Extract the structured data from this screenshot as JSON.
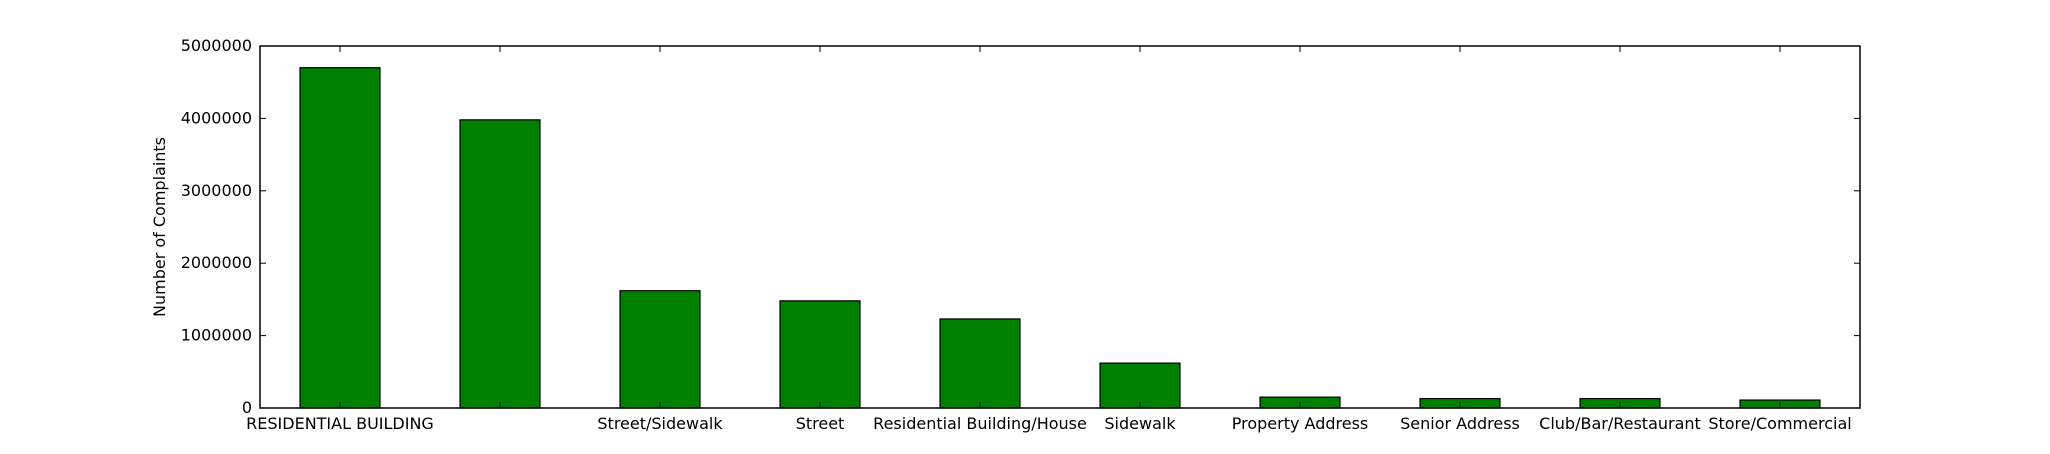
{
  "chart_data": {
    "type": "bar",
    "title": "",
    "xlabel": "",
    "ylabel": "Number of Complaints",
    "categories": [
      "RESIDENTIAL BUILDING",
      "",
      "Street/Sidewalk",
      "Street",
      "Residential Building/House",
      "Sidewalk",
      "Property Address",
      "Senior Address",
      "Club/Bar/Restaurant",
      "Store/Commercial"
    ],
    "values": [
      4700000,
      3980000,
      1620000,
      1480000,
      1230000,
      620000,
      150000,
      130000,
      130000,
      110000
    ],
    "ylim": [
      0,
      5000000
    ],
    "yticks": [
      "0",
      "1000000",
      "2000000",
      "3000000",
      "4000000",
      "5000000"
    ],
    "grid": false,
    "legend": "none",
    "bar_color": "#008000",
    "edge_color": "#000000"
  }
}
